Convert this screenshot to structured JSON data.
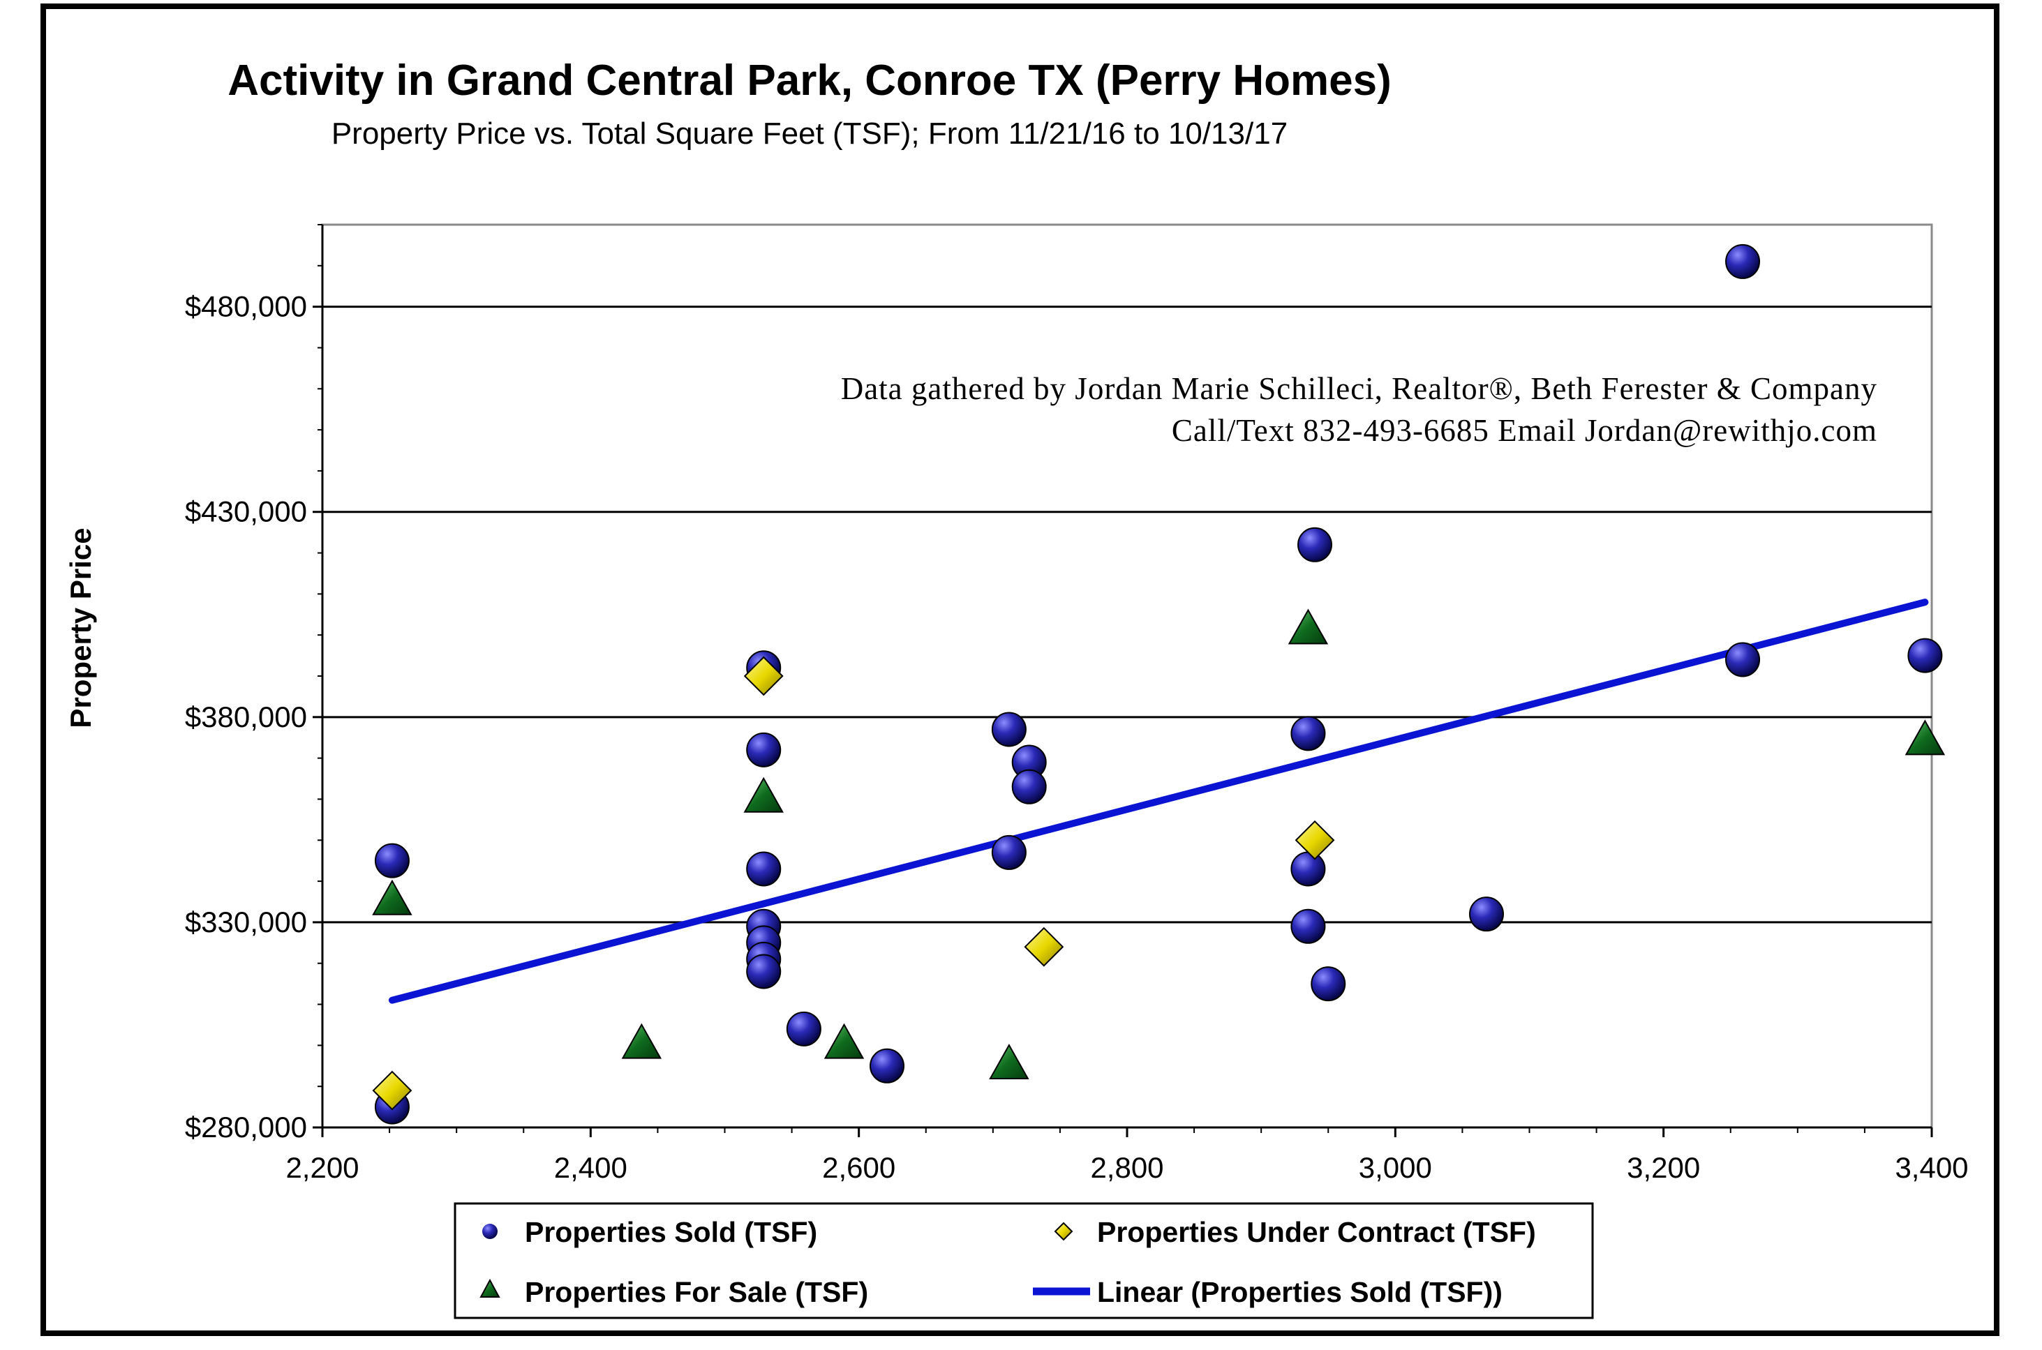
{
  "chart_data": {
    "type": "scatter",
    "title": "Activity in Grand Central Park, Conroe TX (Perry Homes)",
    "subtitle": "Property Price vs. Total Square Feet (TSF); From 11/21/16 to 10/13/17",
    "xlabel": "",
    "ylabel": "Property Price",
    "xlim": [
      2200,
      3400
    ],
    "ylim": [
      280000,
      500000
    ],
    "x_ticks": [
      "2,200",
      "2,400",
      "2,600",
      "2,800",
      "3,000",
      "3,200",
      "3,400"
    ],
    "y_ticks": [
      "$280,000",
      "$330,000",
      "$380,000",
      "$430,000",
      "$480,000"
    ],
    "y_tick_values": [
      280000,
      330000,
      380000,
      430000,
      480000
    ],
    "grid": "horizontal major gridlines",
    "legend_position": "bottom",
    "annotation": {
      "line1": "Data gathered by Jordan Marie Schilleci, Realtor®, Beth Ferester & Company",
      "line2": "Call/Text 832-493-6685 Email Jordan@rewithjo.com"
    },
    "series": [
      {
        "name": "Properties Sold  (TSF)",
        "marker": "circle",
        "color": "#1a1a9c",
        "points": [
          {
            "x": 2252,
            "y": 345000
          },
          {
            "x": 2252,
            "y": 285000
          },
          {
            "x": 2529,
            "y": 392000
          },
          {
            "x": 2529,
            "y": 372000
          },
          {
            "x": 2529,
            "y": 343000
          },
          {
            "x": 2529,
            "y": 329000
          },
          {
            "x": 2529,
            "y": 325000
          },
          {
            "x": 2529,
            "y": 321000
          },
          {
            "x": 2529,
            "y": 318000
          },
          {
            "x": 2559,
            "y": 304000
          },
          {
            "x": 2621,
            "y": 295000
          },
          {
            "x": 2712,
            "y": 377000
          },
          {
            "x": 2712,
            "y": 347000
          },
          {
            "x": 2727,
            "y": 369000
          },
          {
            "x": 2727,
            "y": 363000
          },
          {
            "x": 2935,
            "y": 376000
          },
          {
            "x": 2935,
            "y": 343000
          },
          {
            "x": 2935,
            "y": 329000
          },
          {
            "x": 2940,
            "y": 422000
          },
          {
            "x": 2950,
            "y": 315000
          },
          {
            "x": 3068,
            "y": 332000
          },
          {
            "x": 3259,
            "y": 491000
          },
          {
            "x": 3259,
            "y": 394000
          },
          {
            "x": 3395,
            "y": 395000
          }
        ]
      },
      {
        "name": "Properties Under Contract  (TSF)",
        "marker": "diamond",
        "color": "#e8d800",
        "points": [
          {
            "x": 2252,
            "y": 289000
          },
          {
            "x": 2529,
            "y": 390000
          },
          {
            "x": 2738,
            "y": 324000
          },
          {
            "x": 2940,
            "y": 350000
          }
        ]
      },
      {
        "name": "Properties For Sale  (TSF)",
        "marker": "triangle",
        "color": "#0f6b1e",
        "points": [
          {
            "x": 2252,
            "y": 335000
          },
          {
            "x": 2438,
            "y": 300000
          },
          {
            "x": 2529,
            "y": 360000
          },
          {
            "x": 2589,
            "y": 300000
          },
          {
            "x": 2712,
            "y": 295000
          },
          {
            "x": 2935,
            "y": 401000
          },
          {
            "x": 3395,
            "y": 374000
          }
        ]
      }
    ],
    "trendline": {
      "name": "Linear  (Properties Sold  (TSF))",
      "color": "#0a14d2",
      "x": [
        2252,
        3395
      ],
      "y": [
        311000,
        408000
      ]
    },
    "legend_swatches": {
      "sold": "#1a1a9c",
      "contract": "#e8d800",
      "sale": "#0f6b1e",
      "trend": "#0a14d2"
    }
  }
}
